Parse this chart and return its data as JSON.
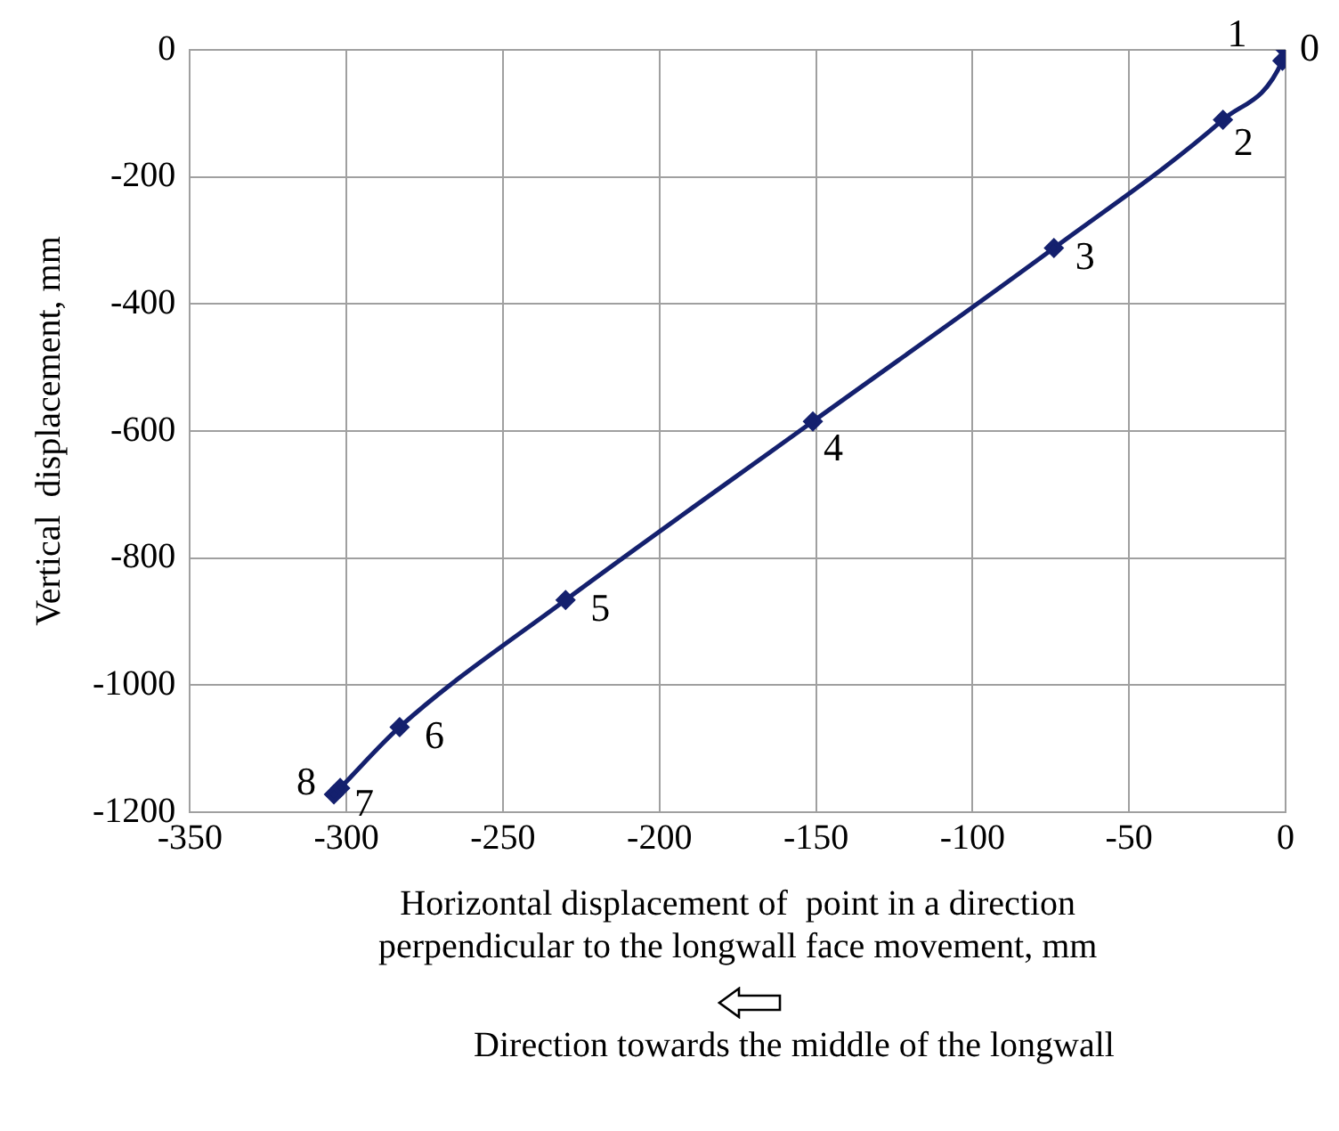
{
  "chart_data": {
    "type": "line",
    "xlabel": "Horizontal displacement of  point in a direction\nperpendicular to the longwall face movement, mm",
    "ylabel": "Vertical  displacement, mm",
    "series": [
      {
        "color": "#14206e",
        "x": [
          0,
          -1,
          -20,
          -74,
          -151,
          -230,
          -283,
          -302,
          -304
        ],
        "values": [
          0,
          -17,
          -110,
          -312,
          -585,
          -866,
          -1066,
          -1162,
          -1172
        ]
      }
    ],
    "xlim": [
      -350,
      0
    ],
    "xticks": [
      -350,
      -300,
      -250,
      -200,
      -150,
      -100,
      -50,
      0
    ],
    "ylim": [
      -1200,
      0
    ],
    "yticks": [
      -1200,
      -1000,
      -800,
      -600,
      -400,
      -200,
      0
    ],
    "grid": true,
    "marker": "diamond",
    "line_style": "solid",
    "legend": false,
    "annotations": [
      {
        "text": "0",
        "x": 0,
        "y": 0
      },
      {
        "text": "1",
        "x": -1,
        "y": -17
      },
      {
        "text": "2",
        "x": -20,
        "y": -110
      },
      {
        "text": "3",
        "x": -74,
        "y": -312
      },
      {
        "text": "4",
        "x": -151,
        "y": -585
      },
      {
        "text": "5",
        "x": -230,
        "y": -866
      },
      {
        "text": "6",
        "x": -283,
        "y": -1066
      },
      {
        "text": "7",
        "x": -302,
        "y": -1162
      },
      {
        "text": "8",
        "x": -304,
        "y": -1172
      },
      "Direction towards the middle of the longwall"
    ]
  }
}
